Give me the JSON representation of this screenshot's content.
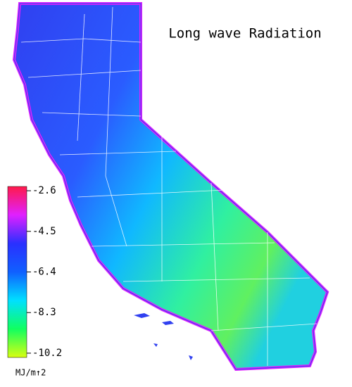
{
  "title": "Long wave Radiation",
  "colorbar": {
    "lim": [
      -2.4,
      -10.4
    ],
    "ticks": [
      -2.6,
      -4.5,
      -6.4,
      -8.3,
      -10.2
    ],
    "unit": "MJ/m↑2",
    "colors": [
      "#ff1a4a",
      "#e020ff",
      "#2a30ff",
      "#1060ff",
      "#00e0ff",
      "#10ff60",
      "#d8ff10"
    ]
  }
}
